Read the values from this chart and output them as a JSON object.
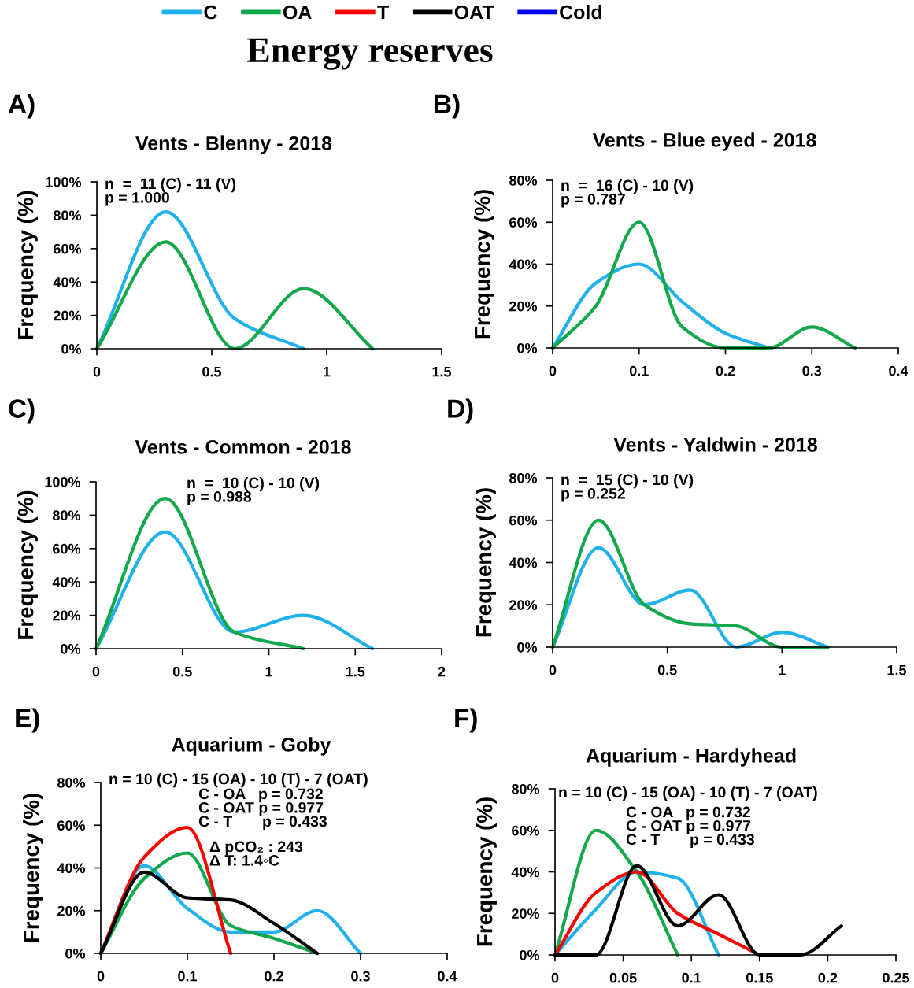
{
  "chart_data": [
    {
      "type": "other",
      "title": "Energy reserves",
      "legend": "top",
      "series": [
        {
          "name": "C",
          "color": "#1fb1ec"
        },
        {
          "name": "OA",
          "color": "#12a84b"
        },
        {
          "name": "T",
          "color": "#ff0000"
        },
        {
          "name": "OAT",
          "color": "#000000"
        },
        {
          "name": "Cold",
          "color": "#0000ff"
        }
      ]
    },
    {
      "type": "line",
      "title": "Vents - Blenny - 2018",
      "ylabel": "Frequency (%)",
      "annotations": [
        "A)",
        "n  =  11 (C) - 11 (V)\np = 1.000"
      ],
      "x": [
        0,
        0.3,
        0.6,
        0.9,
        1.2
      ],
      "series": [
        {
          "color": "#1fb1ec",
          "values": [
            0,
            82,
            18,
            0,
            null
          ]
        },
        {
          "color": "#12a84b",
          "values": [
            0,
            64,
            0,
            36,
            0
          ]
        }
      ],
      "xlim": [
        0,
        1.5
      ],
      "xticks": [
        0,
        0.5,
        1,
        1.5
      ],
      "ylim": [
        0,
        100
      ],
      "yticks": [
        {
          "value": 0,
          "label": "0%"
        },
        {
          "value": 20,
          "label": "20%"
        },
        {
          "value": 40,
          "label": "40%"
        },
        {
          "value": 60,
          "label": "60%"
        },
        {
          "value": 80,
          "label": "80%"
        },
        {
          "value": 100,
          "label": "100%"
        }
      ]
    },
    {
      "type": "line",
      "title": "Vents - Blue eyed - 2018",
      "ylabel": "Frequency (%)",
      "annotations": [
        "B)",
        "n  =  16 (C) - 10 (V)\np = 0.787"
      ],
      "x": [
        0,
        0.05,
        0.1,
        0.15,
        0.2,
        0.25,
        0.3,
        0.35
      ],
      "series": [
        {
          "color": "#1fb1ec",
          "values": [
            0,
            31,
            40,
            22,
            7,
            0,
            null,
            null
          ]
        },
        {
          "color": "#12a84b",
          "values": [
            0,
            20,
            60,
            10,
            0,
            0,
            10,
            0
          ]
        }
      ],
      "xlim": [
        0,
        0.4
      ],
      "xticks": [
        0,
        0.1,
        0.2,
        0.3,
        0.4
      ],
      "ylim": [
        0,
        80
      ],
      "yticks": [
        {
          "value": 0,
          "label": "0%"
        },
        {
          "value": 20,
          "label": "20%"
        },
        {
          "value": 40,
          "label": "40%"
        },
        {
          "value": 60,
          "label": "60%"
        },
        {
          "value": 80,
          "label": "80%"
        }
      ]
    },
    {
      "type": "line",
      "title": "Vents - Common - 2018",
      "ylabel": "Frequency (%)",
      "annotations": [
        "C)",
        "n  =  10 (C) - 10 (V)\np = 0.988"
      ],
      "x": [
        0,
        0.4,
        0.8,
        1.2,
        1.6
      ],
      "series": [
        {
          "color": "#1fb1ec",
          "values": [
            0,
            70,
            10,
            20,
            0
          ]
        },
        {
          "color": "#12a84b",
          "values": [
            0,
            90,
            10,
            0,
            null
          ]
        }
      ],
      "xlim": [
        0,
        2
      ],
      "xticks": [
        0,
        0.5,
        1,
        1.5,
        2
      ],
      "ylim": [
        0,
        100
      ],
      "yticks": [
        {
          "value": 0,
          "label": "0%"
        },
        {
          "value": 20,
          "label": "20%"
        },
        {
          "value": 40,
          "label": "40%"
        },
        {
          "value": 60,
          "label": "60%"
        },
        {
          "value": 80,
          "label": "80%"
        },
        {
          "value": 100,
          "label": "100%"
        }
      ]
    },
    {
      "type": "line",
      "title": "Vents - Yaldwin - 2018",
      "ylabel": "Frequency (%)",
      "annotations": [
        "D)",
        "n  =  15 (C) - 10 (V)\np = 0.252"
      ],
      "x": [
        0,
        0.2,
        0.4,
        0.6,
        0.8,
        1,
        1.2
      ],
      "series": [
        {
          "color": "#1fb1ec",
          "values": [
            0,
            47,
            20,
            27,
            0,
            7,
            0
          ]
        },
        {
          "color": "#12a84b",
          "values": [
            0,
            60,
            20,
            11,
            10,
            0,
            0
          ]
        }
      ],
      "xlim": [
        0,
        1.5
      ],
      "xticks": [
        0,
        0.5,
        1,
        1.5
      ],
      "ylim": [
        0,
        80
      ],
      "yticks": [
        {
          "value": 0,
          "label": "0%"
        },
        {
          "value": 20,
          "label": "20%"
        },
        {
          "value": 40,
          "label": "40%"
        },
        {
          "value": 60,
          "label": "60%"
        },
        {
          "value": 80,
          "label": "80%"
        }
      ]
    },
    {
      "type": "line",
      "title": "Aquarium - Goby",
      "ylabel": "Frequency (%)",
      "annotations": [
        "E)",
        "n = 10 (C) - 15 (OA) - 10 (T) - 7 (OAT)",
        "C - OA   p = 0.732\nC - OAT p = 0.977\nC - T       p = 0.433",
        "Δ pCO₂ : 243\nΔ T: 1.4◦C"
      ],
      "x": [
        0,
        0.05,
        0.1,
        0.15,
        0.2,
        0.25,
        0.3
      ],
      "series": [
        {
          "color": "#1fb1ec",
          "values": [
            0,
            41,
            21,
            10,
            10,
            20,
            0
          ]
        },
        {
          "color": "#12a84b",
          "values": [
            0,
            35,
            47,
            13,
            7,
            0,
            null
          ]
        },
        {
          "color": "#ff0000",
          "values": [
            0,
            45,
            59,
            0,
            null,
            null,
            null
          ]
        },
        {
          "color": "#000000",
          "values": [
            0,
            38,
            26,
            25,
            14,
            0,
            null
          ]
        }
      ],
      "xlim": [
        0,
        0.4
      ],
      "xticks": [
        0,
        0.1,
        0.2,
        0.3,
        0.4
      ],
      "ylim": [
        0,
        80
      ],
      "yticks": [
        {
          "value": 0,
          "label": "0%"
        },
        {
          "value": 20,
          "label": "20%"
        },
        {
          "value": 40,
          "label": "40%"
        },
        {
          "value": 60,
          "label": "60%"
        },
        {
          "value": 80,
          "label": "80%"
        }
      ]
    },
    {
      "type": "line",
      "title": "Aquarium - Hardyhead",
      "ylabel": "Frequency (%)",
      "annotations": [
        "F)",
        "n = 10 (C) - 15 (OA) - 10 (T) - 7 (OAT)",
        "C - OA   p = 0.732\nC - OAT p = 0.977\nC - T       p = 0.433"
      ],
      "x": [
        0,
        0.03,
        0.06,
        0.09,
        0.12,
        0.15,
        0.18,
        0.21
      ],
      "series": [
        {
          "color": "#1fb1ec",
          "values": [
            0,
            22,
            40,
            37,
            0,
            null,
            null,
            null
          ]
        },
        {
          "color": "#12a84b",
          "values": [
            0,
            60,
            40,
            0,
            null,
            null,
            null,
            null
          ]
        },
        {
          "color": "#ff0000",
          "values": [
            0,
            30,
            40,
            20,
            10,
            0,
            null,
            null
          ]
        },
        {
          "color": "#000000",
          "values": [
            0,
            0,
            43,
            14,
            29,
            0,
            0,
            14
          ]
        }
      ],
      "xlim": [
        0,
        0.25
      ],
      "xticks": [
        0,
        0.05,
        0.1,
        0.15,
        0.2,
        0.25
      ],
      "ylim": [
        0,
        80
      ],
      "yticks": [
        {
          "value": 0,
          "label": "0%"
        },
        {
          "value": 20,
          "label": "20%"
        },
        {
          "value": 40,
          "label": "40%"
        },
        {
          "value": 60,
          "label": "60%"
        },
        {
          "value": 80,
          "label": "80%"
        }
      ]
    }
  ]
}
